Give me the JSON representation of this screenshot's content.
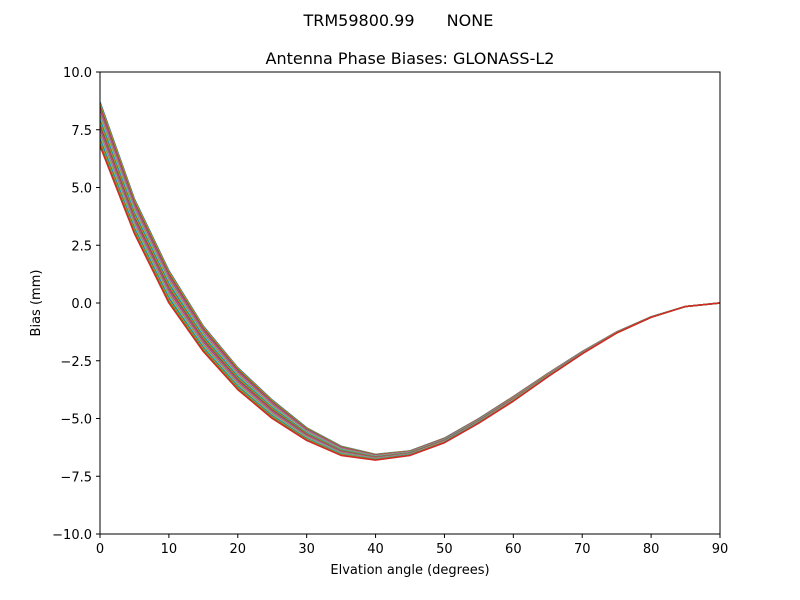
{
  "figure": {
    "suptitle_left": "TRM59800.99",
    "suptitle_right": "NONE"
  },
  "chart_data": {
    "type": "line",
    "title": "Antenna Phase Biases: GLONASS-L2",
    "xlabel": "Elvation angle (degrees)",
    "ylabel": "Bias (mm)",
    "xlim": [
      0,
      90
    ],
    "ylim": [
      -10,
      10
    ],
    "xticks": [
      0,
      10,
      20,
      30,
      40,
      50,
      60,
      70,
      80,
      90
    ],
    "yticks": [
      -10.0,
      -7.5,
      -5.0,
      -2.5,
      0.0,
      2.5,
      5.0,
      7.5,
      10.0
    ],
    "ytick_labels": [
      "−10.0",
      "−7.5",
      "−5.0",
      "−2.5",
      "0.0",
      "2.5",
      "5.0",
      "7.5",
      "10.0"
    ],
    "grid": false,
    "x": [
      0,
      5,
      10,
      15,
      20,
      25,
      30,
      35,
      40,
      45,
      50,
      55,
      60,
      65,
      70,
      75,
      80,
      85,
      90
    ],
    "envelope_upper": [
      8.7,
      4.5,
      1.4,
      -1.0,
      -2.8,
      -4.2,
      -5.4,
      -6.2,
      -6.55,
      -6.4,
      -5.85,
      -5.0,
      -4.05,
      -3.05,
      -2.1,
      -1.25,
      -0.6,
      -0.15,
      0.0
    ],
    "envelope_lower": [
      6.8,
      3.0,
      0.0,
      -2.1,
      -3.75,
      -5.0,
      -5.95,
      -6.6,
      -6.8,
      -6.6,
      -6.05,
      -5.2,
      -4.25,
      -3.2,
      -2.2,
      -1.3,
      -0.62,
      -0.15,
      0.0
    ],
    "series_count": 24,
    "series_colors": [
      "#1f77b4",
      "#ff7f0e",
      "#2ca02c",
      "#d62728",
      "#9467bd",
      "#8c564b",
      "#e377c2",
      "#7f7f7f",
      "#bcbd22",
      "#17becf"
    ]
  }
}
